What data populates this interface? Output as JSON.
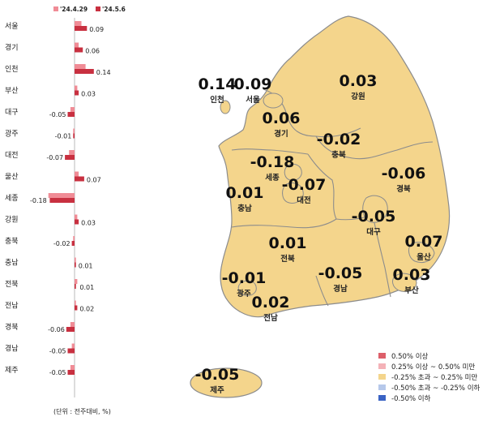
{
  "chart_data": [
    {
      "type": "bar",
      "orientation": "horizontal",
      "categories": [
        "서울",
        "경기",
        "인천",
        "부산",
        "대구",
        "광주",
        "대전",
        "울산",
        "세종",
        "강원",
        "충북",
        "충남",
        "전북",
        "전남",
        "경북",
        "경남",
        "제주"
      ],
      "series": [
        {
          "name": "'24.4.29",
          "color": "#f08c96",
          "values": [
            0.05,
            0.03,
            0.08,
            0.02,
            -0.03,
            -0.01,
            -0.04,
            0.03,
            -0.19,
            0.02,
            -0.01,
            0.01,
            0.02,
            0.01,
            -0.03,
            -0.02,
            -0.03
          ]
        },
        {
          "name": "'24.5.6",
          "color": "#c83040",
          "values": [
            0.09,
            0.06,
            0.14,
            0.03,
            -0.05,
            -0.01,
            -0.07,
            0.07,
            -0.18,
            0.03,
            -0.02,
            0.01,
            0.01,
            0.02,
            -0.06,
            -0.05,
            -0.05
          ]
        }
      ],
      "value_labels": [
        "0.09",
        "0.06",
        "0.14",
        "0.03",
        "-0.05",
        "-0.01",
        "-0.07",
        "0.07",
        "-0.18",
        "0.03",
        "-0.02",
        "0.01",
        "0.01",
        "0.02",
        "-0.06",
        "-0.05",
        "-0.05"
      ],
      "unit_note": "(단위 : 전주대비, %)",
      "legend_placement": "top"
    },
    {
      "type": "choropleth-map",
      "regions": [
        {
          "name": "인천",
          "value": "0.14",
          "color": "#f4d58c"
        },
        {
          "name": "서울",
          "value": "0.09",
          "color": "#f4d58c"
        },
        {
          "name": "강원",
          "value": "0.03",
          "color": "#f4d58c"
        },
        {
          "name": "경기",
          "value": "0.06",
          "color": "#f4d58c"
        },
        {
          "name": "충북",
          "value": "-0.02",
          "color": "#f4d58c"
        },
        {
          "name": "세종",
          "value": "-0.18",
          "color": "#f4d58c"
        },
        {
          "name": "대전",
          "value": "-0.07",
          "color": "#f4d58c"
        },
        {
          "name": "충남",
          "value": "0.01",
          "color": "#f4d58c"
        },
        {
          "name": "경북",
          "value": "-0.06",
          "color": "#f4d58c"
        },
        {
          "name": "대구",
          "value": "-0.05",
          "color": "#f4d58c"
        },
        {
          "name": "전북",
          "value": "0.01",
          "color": "#f4d58c"
        },
        {
          "name": "울산",
          "value": "0.07",
          "color": "#f4d58c"
        },
        {
          "name": "광주",
          "value": "-0.01",
          "color": "#f4d58c"
        },
        {
          "name": "경남",
          "value": "-0.05",
          "color": "#f4d58c"
        },
        {
          "name": "부산",
          "value": "0.03",
          "color": "#f4d58c"
        },
        {
          "name": "전남",
          "value": "0.02",
          "color": "#f4d58c"
        },
        {
          "name": "제주",
          "value": "-0.05",
          "color": "#f4d58c"
        }
      ],
      "legend": [
        {
          "label": "0.50% 이상",
          "color": "#dd5f6a"
        },
        {
          "label": "0.25% 이상 ~ 0.50% 미만",
          "color": "#f4b2b8"
        },
        {
          "label": "-0.25% 초과 ~ 0.25% 미만",
          "color": "#f4d58c"
        },
        {
          "label": "-0.50% 초과 ~ -0.25% 이하",
          "color": "#b6c8ea"
        },
        {
          "label": "-0.50% 이하",
          "color": "#3a63c4"
        }
      ]
    }
  ]
}
